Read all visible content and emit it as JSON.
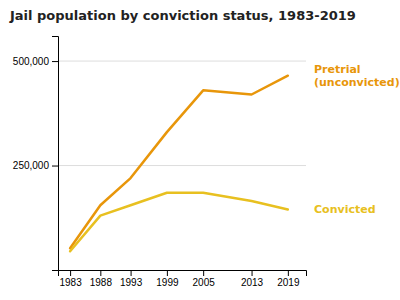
{
  "chart_data": {
    "type": "line",
    "title": "Jail population by conviction status, 1983-2019",
    "x": [
      1983,
      1988,
      1993,
      1999,
      2005,
      2013,
      2019
    ],
    "series": [
      {
        "name": "Pretrial\n(unconvicted)",
        "color": "#e8960a",
        "values": [
          52000,
          155000,
          220000,
          330000,
          430000,
          420000,
          465000
        ]
      },
      {
        "name": "Convicted",
        "color": "#e8c020",
        "values": [
          45000,
          130000,
          155000,
          185000,
          185000,
          165000,
          145000
        ]
      }
    ],
    "xlim": [
      1981,
      2022
    ],
    "xticks": [
      1983,
      1988,
      1993,
      1999,
      2005,
      2013,
      2019
    ],
    "ylim": [
      0,
      560000
    ],
    "yticks": [
      {
        "value": 250000,
        "label": "250,000"
      },
      {
        "value": 500000,
        "label": "500,000"
      }
    ],
    "grid": true
  }
}
